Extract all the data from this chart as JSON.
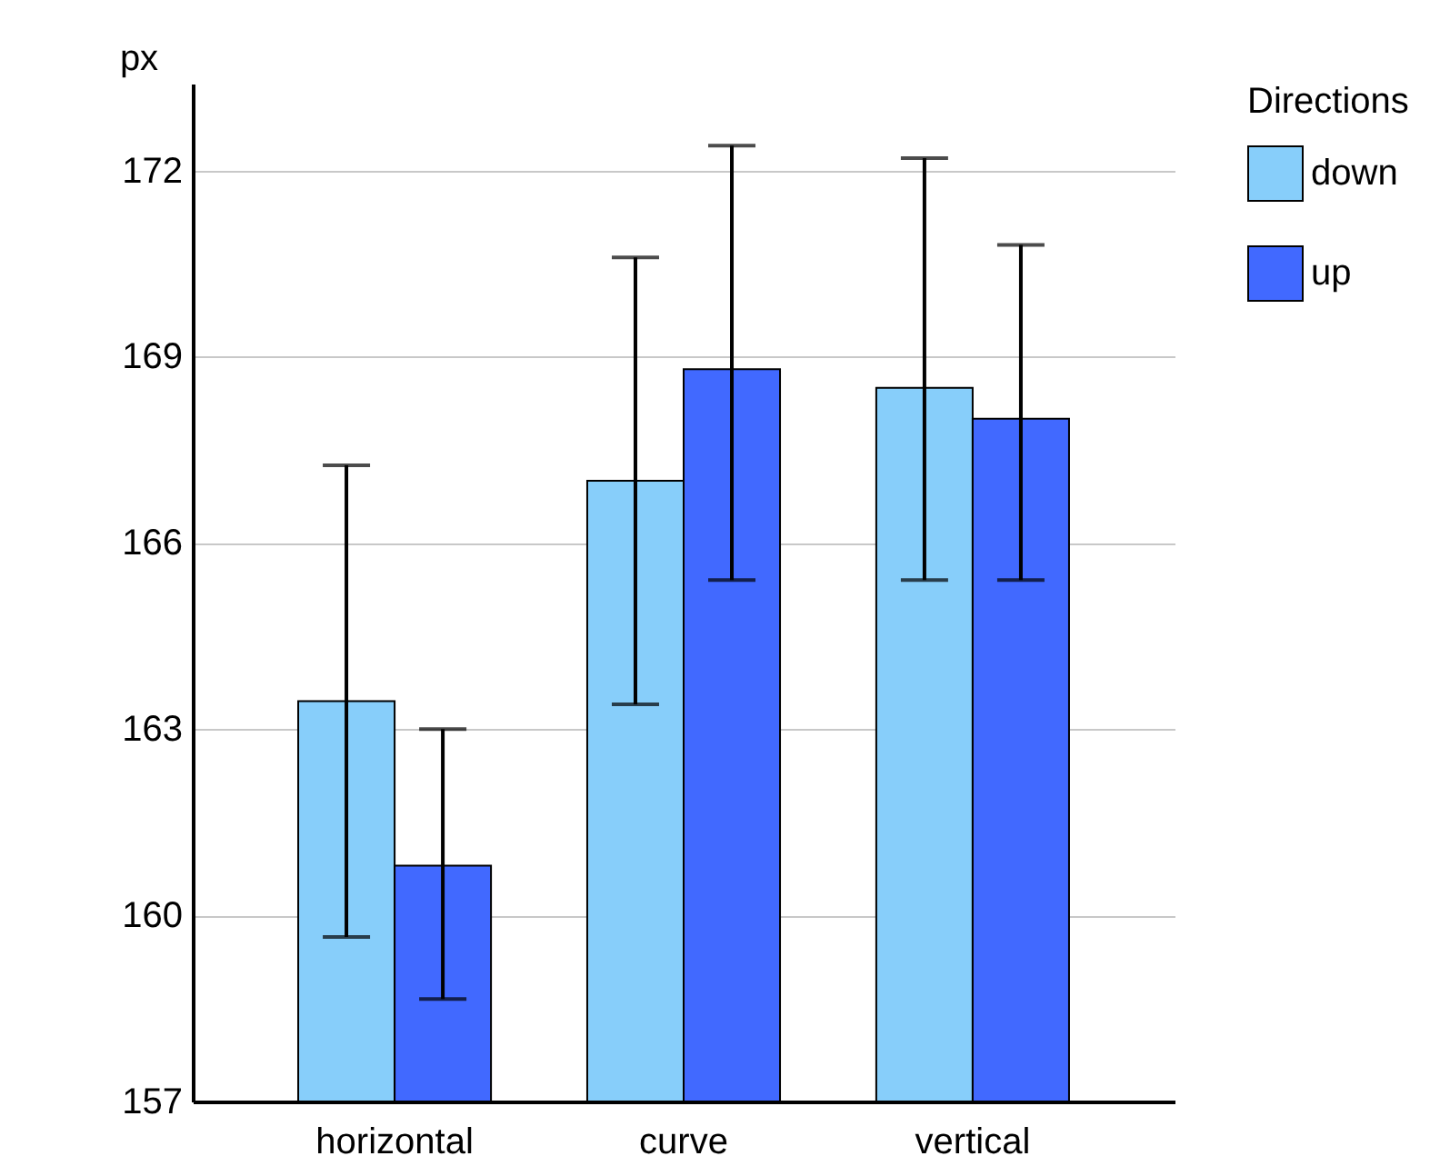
{
  "chart_data": {
    "type": "bar",
    "ylabel": "px",
    "legend_title": "Directions",
    "categories": [
      "horizontal",
      "curve",
      "vertical"
    ],
    "series": [
      {
        "name": "down",
        "color": "#87cefa",
        "values": [
          163.45,
          167.0,
          168.5
        ],
        "errors": [
          [
            159.65,
            167.25
          ],
          [
            163.4,
            170.6
          ],
          [
            165.4,
            172.2
          ]
        ]
      },
      {
        "name": "up",
        "color": "#4169ff",
        "values": [
          160.8,
          168.8,
          168.0
        ],
        "errors": [
          [
            158.65,
            163.0
          ],
          [
            165.4,
            172.4
          ],
          [
            165.4,
            170.8
          ]
        ]
      }
    ],
    "ylim": [
      157,
      173.4
    ],
    "yticks": [
      157,
      160,
      163,
      166,
      169,
      172
    ],
    "grid": "y",
    "legend": "top right"
  }
}
